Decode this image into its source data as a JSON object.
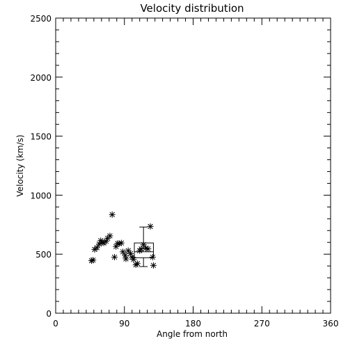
{
  "chart_data": {
    "type": "scatter",
    "title": "Velocity distribution",
    "xlabel": "Angle from north",
    "ylabel": "Velocity (km/s)",
    "xlim": [
      0,
      360
    ],
    "ylim": [
      0,
      2500
    ],
    "xticks": [
      0,
      90,
      180,
      270,
      360
    ],
    "yticks": [
      0,
      500,
      1000,
      1500,
      2000,
      2500
    ],
    "grid": false,
    "marker": "asterisk",
    "points": [
      {
        "x": 47,
        "y": 445
      },
      {
        "x": 49,
        "y": 450
      },
      {
        "x": 51,
        "y": 540
      },
      {
        "x": 54,
        "y": 555
      },
      {
        "x": 57,
        "y": 585
      },
      {
        "x": 59,
        "y": 615
      },
      {
        "x": 61,
        "y": 600
      },
      {
        "x": 63,
        "y": 595
      },
      {
        "x": 66,
        "y": 610
      },
      {
        "x": 68,
        "y": 635
      },
      {
        "x": 71,
        "y": 655
      },
      {
        "x": 74,
        "y": 835
      },
      {
        "x": 77,
        "y": 475
      },
      {
        "x": 79,
        "y": 565
      },
      {
        "x": 81,
        "y": 590
      },
      {
        "x": 83,
        "y": 590
      },
      {
        "x": 86,
        "y": 595
      },
      {
        "x": 88,
        "y": 520
      },
      {
        "x": 91,
        "y": 490
      },
      {
        "x": 92,
        "y": 460
      },
      {
        "x": 95,
        "y": 530
      },
      {
        "x": 98,
        "y": 505
      },
      {
        "x": 100,
        "y": 475
      },
      {
        "x": 102,
        "y": 455
      },
      {
        "x": 105,
        "y": 410
      },
      {
        "x": 107,
        "y": 420
      },
      {
        "x": 110,
        "y": 530
      },
      {
        "x": 112,
        "y": 545
      },
      {
        "x": 115,
        "y": 580
      },
      {
        "x": 118,
        "y": 550
      },
      {
        "x": 121,
        "y": 545
      },
      {
        "x": 124,
        "y": 735
      },
      {
        "x": 127,
        "y": 475
      },
      {
        "x": 128,
        "y": 405
      }
    ],
    "boxplot": {
      "x": 115,
      "x_range": [
        103,
        128
      ],
      "min": 395,
      "q1": 470,
      "median": 520,
      "q3": 595,
      "max": 730
    }
  }
}
